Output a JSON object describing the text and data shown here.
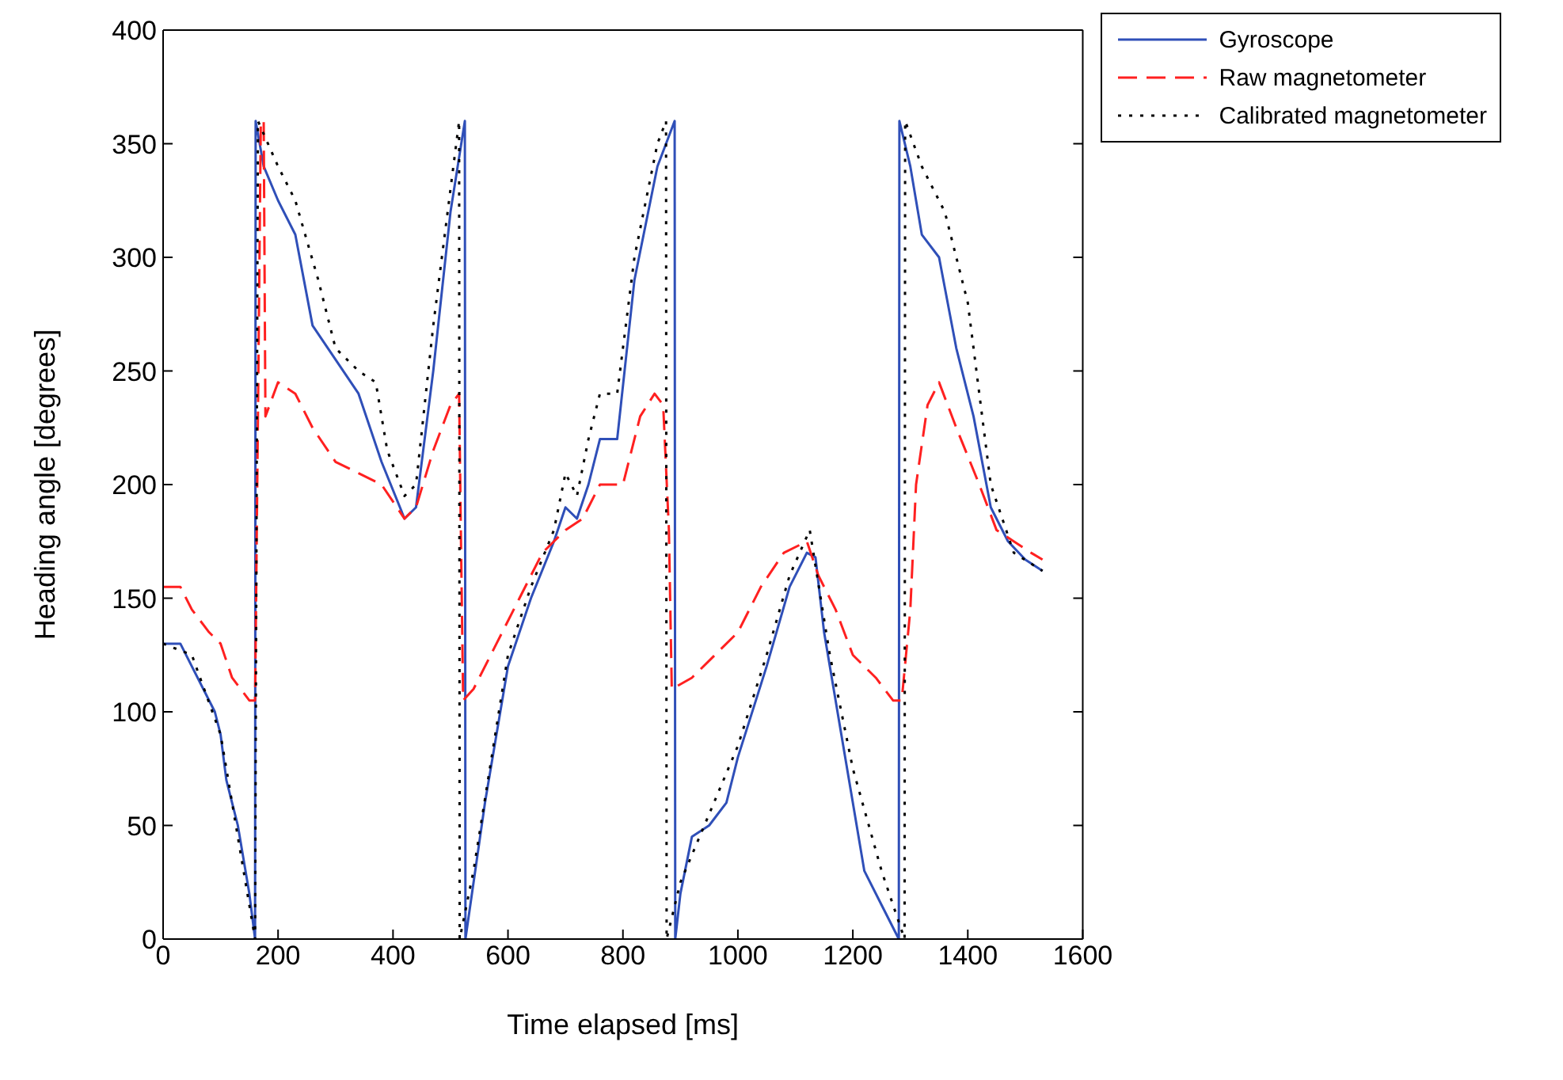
{
  "chart_data": {
    "type": "line",
    "xlabel": "Time elapsed [ms]",
    "ylabel": "Heading angle [degrees]",
    "xlim": [
      0,
      1600
    ],
    "xticks": [
      0,
      200,
      400,
      600,
      800,
      1000,
      1200,
      1400,
      1600
    ],
    "ylim": [
      0,
      400
    ],
    "yticks": [
      0,
      50,
      100,
      150,
      200,
      250,
      300,
      350,
      400
    ],
    "grid": false,
    "legend": "top right",
    "marker": "none",
    "series": [
      {
        "name": "Gyroscope",
        "color": "#2f4fb8",
        "line_style": "solid",
        "x": [
          0,
          30,
          50,
          70,
          90,
          100,
          110,
          130,
          150,
          160,
          161,
          175,
          200,
          230,
          260,
          300,
          340,
          380,
          420,
          440,
          470,
          500,
          525,
          526,
          560,
          600,
          640,
          680,
          700,
          720,
          740,
          760,
          790,
          820,
          860,
          890,
          891,
          900,
          920,
          950,
          980,
          1000,
          1050,
          1090,
          1120,
          1135,
          1150,
          1180,
          1200,
          1220,
          1250,
          1280,
          1281,
          1300,
          1320,
          1350,
          1380,
          1410,
          1440,
          1470,
          1500,
          1530
        ],
        "values": [
          130,
          130,
          120,
          110,
          100,
          90,
          70,
          50,
          20,
          0,
          360,
          340,
          325,
          310,
          270,
          255,
          240,
          210,
          185,
          190,
          250,
          320,
          360,
          0,
          60,
          120,
          150,
          175,
          190,
          185,
          200,
          220,
          220,
          290,
          340,
          360,
          0,
          20,
          45,
          50,
          60,
          80,
          120,
          155,
          170,
          168,
          135,
          90,
          60,
          30,
          15,
          0,
          360,
          340,
          310,
          300,
          260,
          230,
          190,
          175,
          167,
          162
        ]
      },
      {
        "name": "Raw magnetometer",
        "color": "#ff2020",
        "line_style": "dashed",
        "x": [
          0,
          30,
          50,
          80,
          100,
          120,
          150,
          160,
          165,
          170,
          175,
          178,
          200,
          230,
          260,
          300,
          340,
          380,
          420,
          440,
          470,
          500,
          515,
          518,
          522,
          540,
          580,
          620,
          660,
          700,
          730,
          760,
          800,
          830,
          855,
          870,
          880,
          885,
          920,
          960,
          1000,
          1040,
          1080,
          1120,
          1140,
          1170,
          1200,
          1240,
          1270,
          1285,
          1300,
          1310,
          1330,
          1350,
          1380,
          1420,
          1450,
          1480,
          1510,
          1530
        ],
        "values": [
          155,
          155,
          145,
          135,
          130,
          115,
          105,
          105,
          230,
          360,
          360,
          230,
          245,
          240,
          225,
          210,
          205,
          200,
          185,
          190,
          215,
          235,
          240,
          180,
          105,
          110,
          130,
          150,
          170,
          180,
          185,
          200,
          200,
          230,
          240,
          235,
          180,
          110,
          115,
          125,
          135,
          155,
          170,
          175,
          160,
          145,
          125,
          115,
          105,
          105,
          145,
          200,
          235,
          245,
          225,
          200,
          180,
          175,
          170,
          167
        ]
      },
      {
        "name": "Calibrated magnetometer",
        "color": "#000000",
        "line_style": "dotted",
        "x": [
          0,
          50,
          100,
          160,
          165,
          200,
          230,
          270,
          300,
          340,
          370,
          390,
          420,
          440,
          470,
          500,
          515,
          516,
          540,
          600,
          640,
          680,
          700,
          720,
          740,
          760,
          790,
          820,
          860,
          875,
          876,
          900,
          950,
          1000,
          1050,
          1090,
          1125,
          1160,
          1200,
          1250,
          1290,
          1291,
          1320,
          1360,
          1400,
          1440,
          1480,
          1530
        ],
        "values": [
          130,
          125,
          90,
          0,
          360,
          340,
          325,
          290,
          260,
          250,
          245,
          215,
          195,
          200,
          270,
          330,
          360,
          0,
          30,
          125,
          155,
          180,
          205,
          195,
          220,
          240,
          240,
          300,
          350,
          360,
          0,
          25,
          55,
          85,
          125,
          160,
          180,
          125,
          75,
          30,
          0,
          360,
          340,
          320,
          280,
          200,
          170,
          162
        ]
      }
    ]
  }
}
